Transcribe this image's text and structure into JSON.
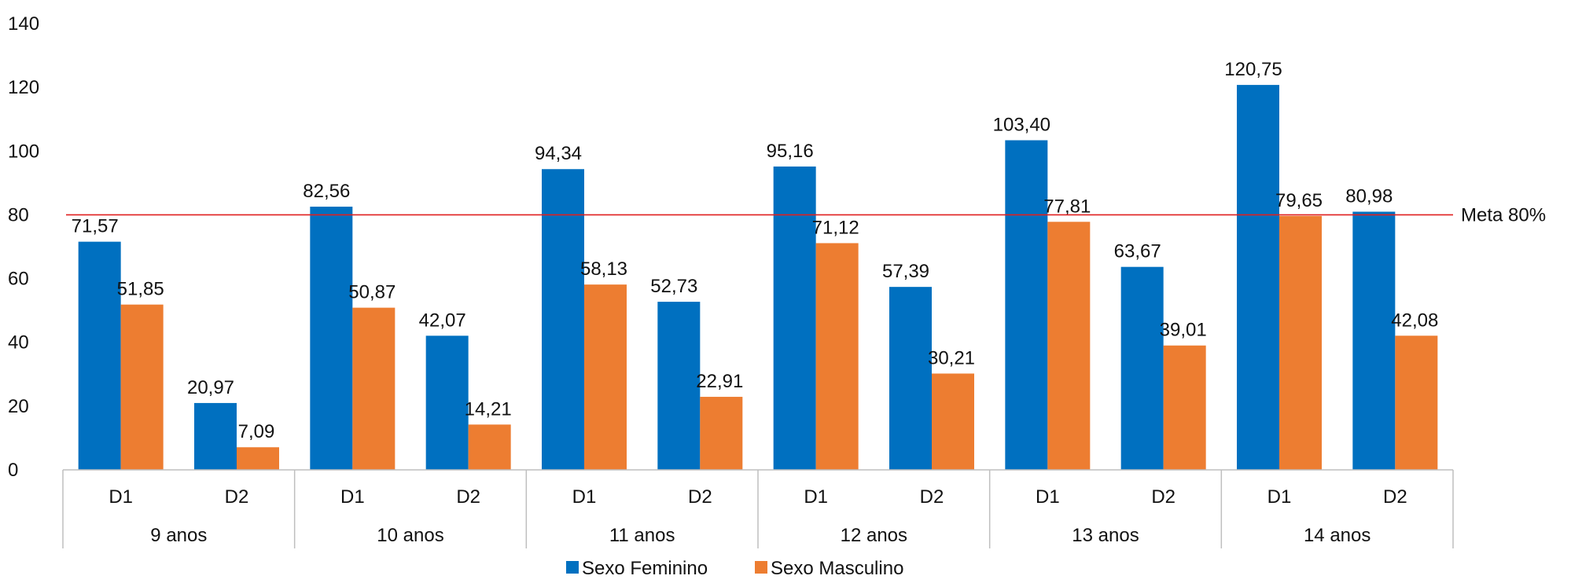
{
  "chart_data": {
    "type": "bar",
    "groups": [
      "9 anos",
      "10 anos",
      "11 anos",
      "12 anos",
      "13 anos",
      "14 anos"
    ],
    "subcategories": [
      "D1",
      "D2"
    ],
    "series": [
      {
        "name": "Sexo Feminino",
        "color": "#0070C0",
        "values": [
          71.57,
          20.97,
          82.56,
          42.07,
          94.34,
          52.73,
          95.16,
          57.39,
          103.4,
          63.67,
          120.75,
          80.98
        ],
        "labels": [
          "71,57",
          "20,97",
          "82,56",
          "42,07",
          "94,34",
          "52,73",
          "95,16",
          "57,39",
          "103,40",
          "63,67",
          "120,75",
          "80,98"
        ]
      },
      {
        "name": "Sexo Masculino",
        "color": "#ED7D31",
        "values": [
          51.85,
          7.09,
          50.87,
          14.21,
          58.13,
          22.91,
          71.12,
          30.21,
          77.81,
          39.01,
          79.65,
          42.08
        ],
        "labels": [
          "51,85",
          "7,09",
          "50,87",
          "14,21",
          "58,13",
          "22,91",
          "71,12",
          "30,21",
          "77,81",
          "39,01",
          "79,65",
          "42,08"
        ]
      }
    ],
    "yticks": [
      "0",
      "20",
      "40",
      "60",
      "80",
      "100",
      "120",
      "140"
    ],
    "ylim": [
      0,
      140
    ],
    "reference_line": {
      "value": 80,
      "label": "Meta 80%",
      "color": "#E02020"
    },
    "legend_position": "bottom",
    "grid": false
  }
}
